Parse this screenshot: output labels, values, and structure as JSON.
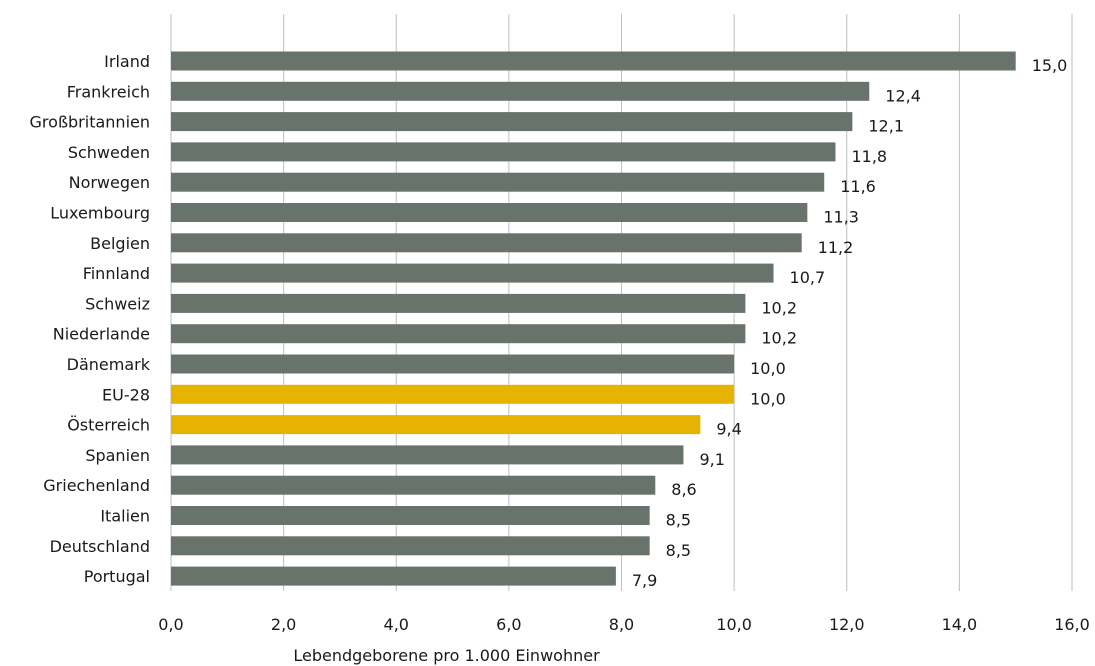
{
  "chart_data": {
    "type": "bar",
    "orientation": "horizontal",
    "categories": [
      "Irland",
      "Frankreich",
      "Großbritannien",
      "Schweden",
      "Norwegen",
      "Luxembourg",
      "Belgien",
      "Finnland",
      "Schweiz",
      "Niederlande",
      "Dänemark",
      "EU-28",
      "Österreich",
      "Spanien",
      "Griechenland",
      "Italien",
      "Deutschland",
      "Portugal"
    ],
    "values": [
      15.0,
      12.4,
      12.1,
      11.8,
      11.6,
      11.3,
      11.2,
      10.7,
      10.2,
      10.2,
      10.0,
      10.0,
      9.4,
      9.1,
      8.6,
      8.5,
      8.5,
      7.9
    ],
    "data_labels": [
      "15,0",
      "12,4",
      "12,1",
      "11,8",
      "11,6",
      "11,3",
      "11,2",
      "10,7",
      "10,2",
      "10,2",
      "10,0",
      "10,0",
      "9,4",
      "9,1",
      "8,6",
      "8,5",
      "8,5",
      "7,9"
    ],
    "highlighted": [
      "EU-28",
      "Österreich"
    ],
    "xlabel": "Lebendgeborene pro 1.000 Einwohner",
    "xlim": [
      0,
      16
    ],
    "xticks": [
      0,
      2,
      4,
      6,
      8,
      10,
      12,
      14,
      16
    ],
    "xtick_labels": [
      "0,0",
      "2,0",
      "4,0",
      "6,0",
      "8,0",
      "10,0",
      "12,0",
      "14,0",
      "16,0"
    ],
    "grid": "vertical",
    "legend": "none",
    "colors": {
      "bar": "#67736b",
      "highlight": "#e6b400",
      "grid": "#bfbfbf"
    }
  }
}
